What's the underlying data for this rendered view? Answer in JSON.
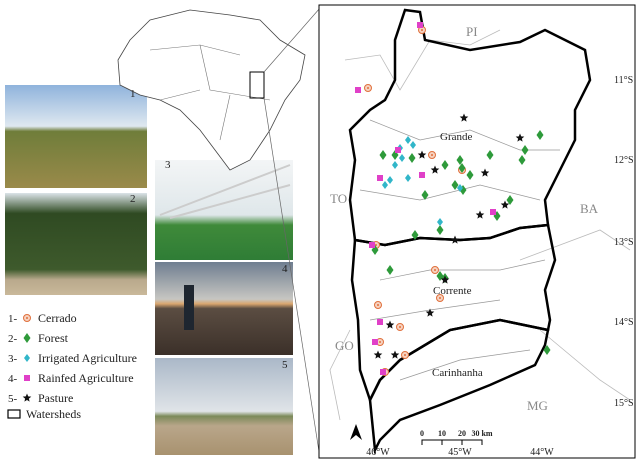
{
  "photos": [
    {
      "number": "1"
    },
    {
      "number": "2"
    },
    {
      "number": "3"
    },
    {
      "number": "4"
    },
    {
      "number": "5"
    }
  ],
  "legend": [
    {
      "number": "1-",
      "label": "Cerrado"
    },
    {
      "number": "2-",
      "label": "Forest"
    },
    {
      "number": "3-",
      "label": "Irrigated Agriculture"
    },
    {
      "number": "4-",
      "label": "Rainfed Agriculture"
    },
    {
      "number": "5-",
      "label": "Pasture"
    }
  ],
  "watersheds": "Watersheds",
  "map": {
    "states": [
      "PI",
      "TO",
      "BA",
      "GO",
      "MG"
    ],
    "basins": [
      "Grande",
      "Corrente",
      "Carinhanha"
    ],
    "lat_labels": [
      "11°S",
      "12°S",
      "13°S",
      "14°S",
      "15°S"
    ],
    "lon_labels": [
      "46°W",
      "45°W",
      "44°W"
    ],
    "scale_ticks": [
      "0",
      "10",
      "20",
      "30 km"
    ]
  }
}
